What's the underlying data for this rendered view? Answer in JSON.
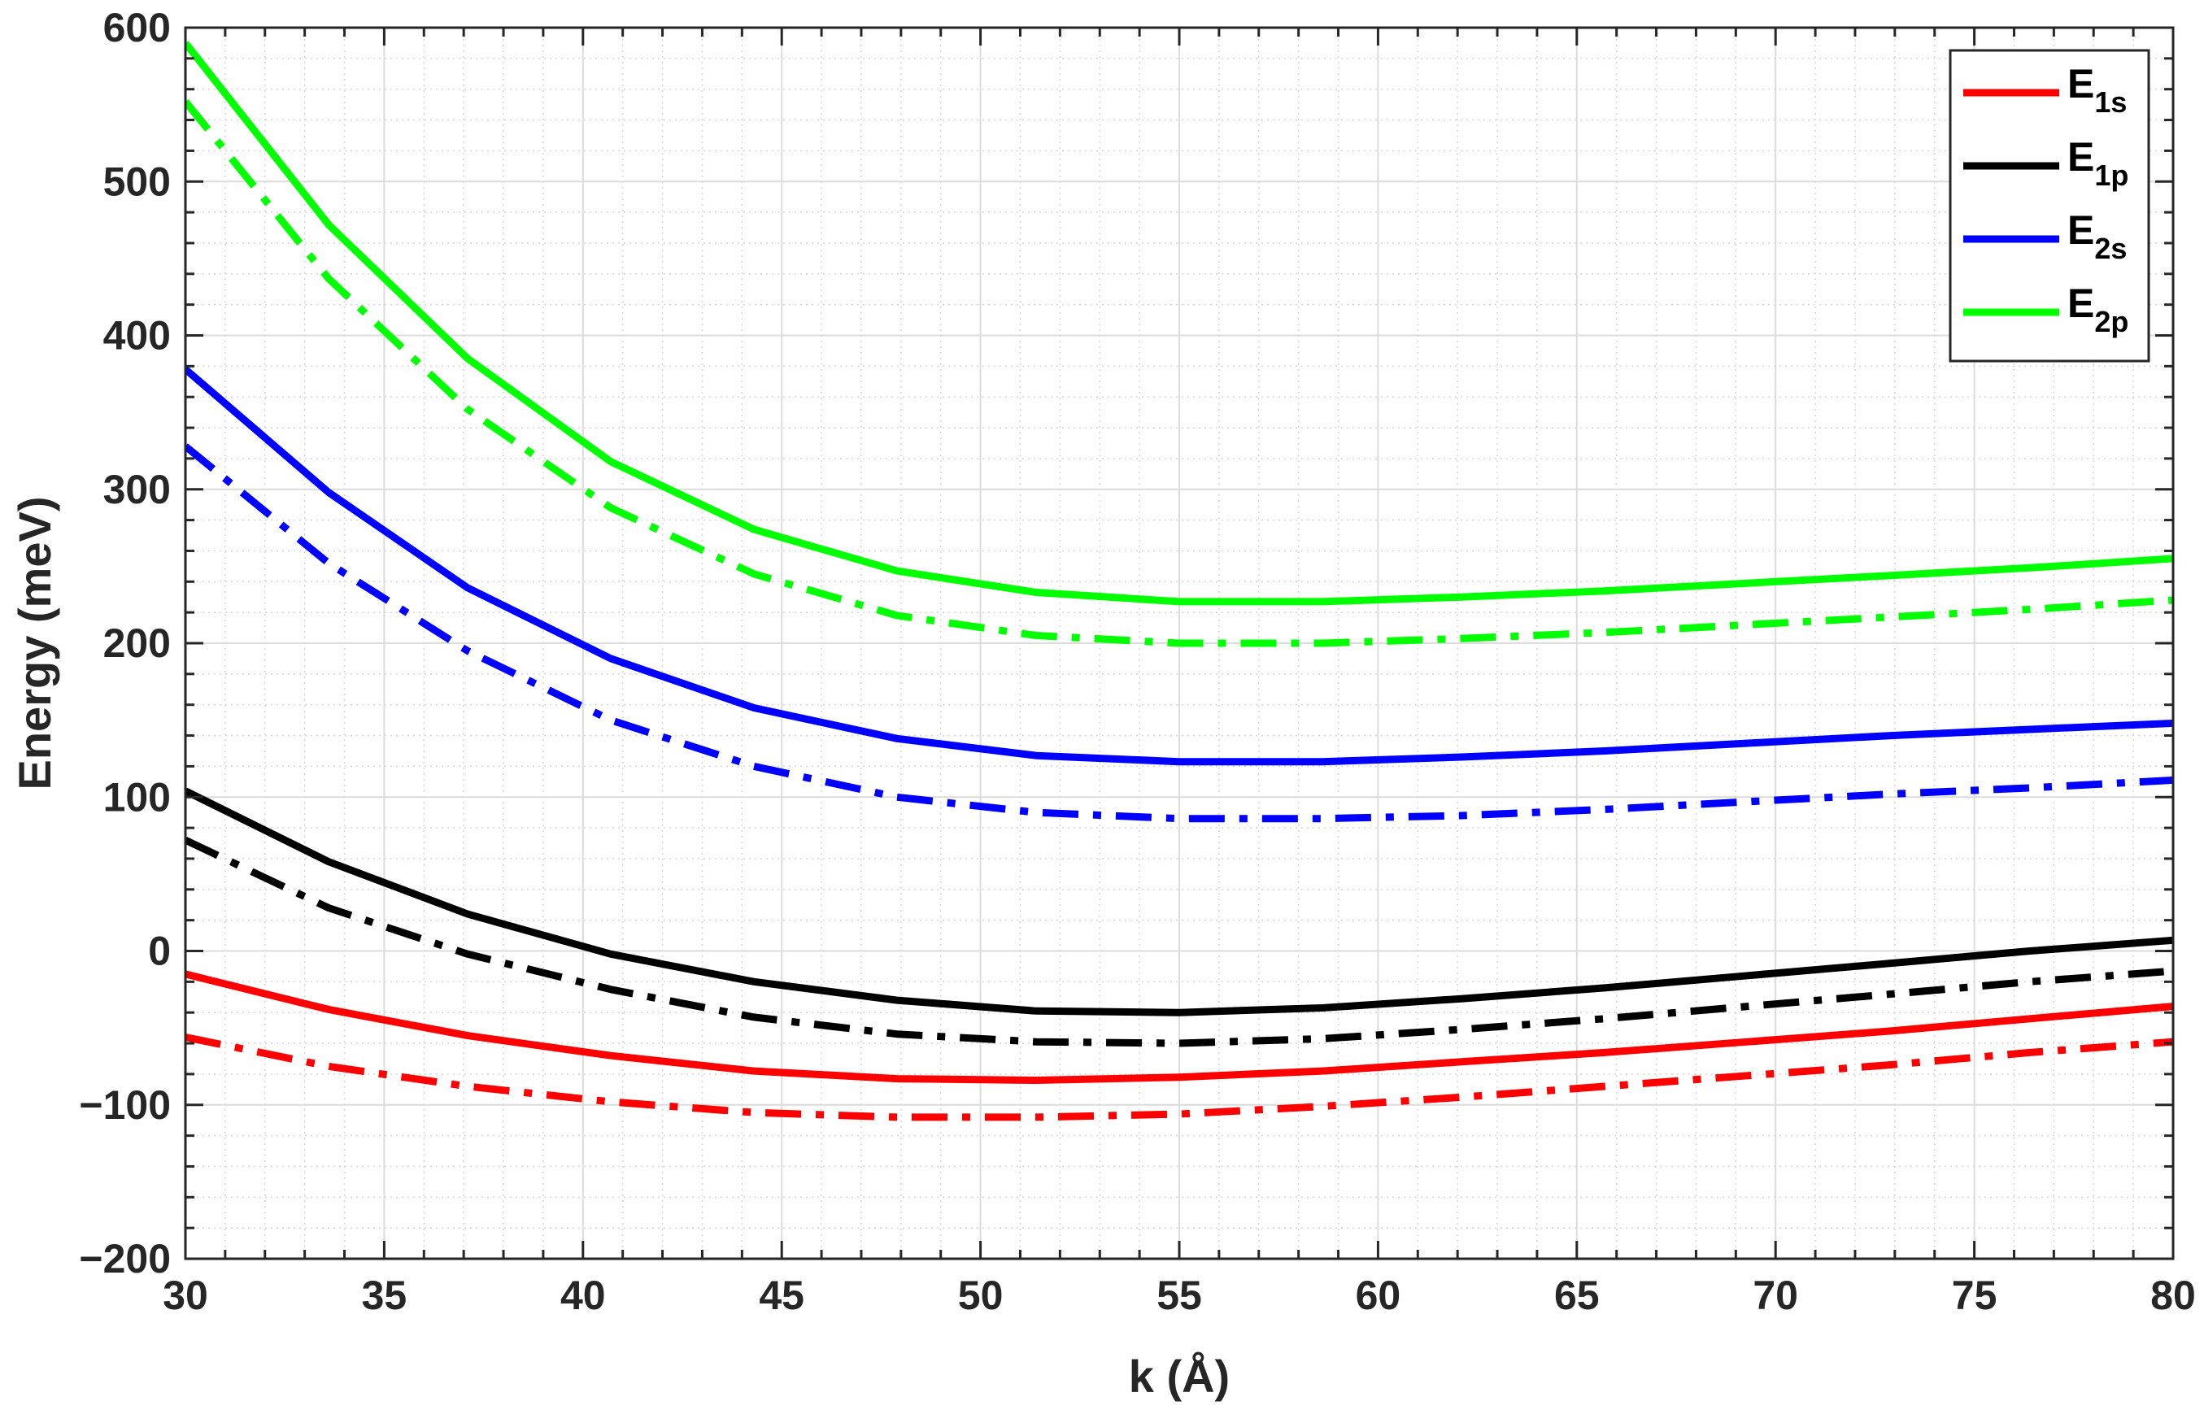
{
  "chart_data": {
    "type": "line",
    "title": "",
    "xlabel": "k (Å)",
    "ylabel": "Energy (meV)",
    "xlim": [
      30,
      80
    ],
    "ylim": [
      -200,
      600
    ],
    "xticks": [
      30,
      35,
      40,
      45,
      50,
      55,
      60,
      65,
      70,
      75,
      80
    ],
    "yticks": [
      -200,
      -100,
      0,
      100,
      200,
      300,
      400,
      500,
      600
    ],
    "xtick_labels": [
      "30",
      "35",
      "40",
      "45",
      "50",
      "55",
      "60",
      "65",
      "70",
      "75",
      "80"
    ],
    "ytick_labels": [
      "−200",
      "−100",
      "0",
      "100",
      "200",
      "300",
      "400",
      "500",
      "600"
    ],
    "grid": true,
    "minor_grid": true,
    "legend_position": "top-right",
    "x": [
      30,
      33.6,
      37.1,
      40.7,
      44.3,
      47.9,
      51.4,
      55,
      58.6,
      62.1,
      65.7,
      69.3,
      72.9,
      76.4,
      80
    ],
    "series": [
      {
        "name": "E",
        "subscript": "1s",
        "color": "#ff0000",
        "style": "solid",
        "values": [
          -15,
          -38,
          -55,
          -68,
          -78,
          -83,
          -84,
          -82,
          -78,
          -72,
          -66,
          -59,
          -52,
          -44,
          -36
        ],
        "legend": true
      },
      {
        "color": "#ff0000",
        "style": "dashdot",
        "values": [
          -56,
          -75,
          -88,
          -98,
          -105,
          -108,
          -108,
          -106,
          -101,
          -95,
          -88,
          -81,
          -74,
          -66,
          -59
        ],
        "legend": false
      },
      {
        "name": "E",
        "subscript": "1p",
        "color": "#000000",
        "style": "solid",
        "values": [
          104,
          58,
          24,
          -2,
          -20,
          -32,
          -39,
          -40,
          -37,
          -31,
          -24,
          -16,
          -8,
          0,
          7
        ],
        "legend": true
      },
      {
        "color": "#000000",
        "style": "dashdot",
        "values": [
          72,
          28,
          -2,
          -25,
          -43,
          -54,
          -59,
          -60,
          -57,
          -51,
          -44,
          -36,
          -28,
          -20,
          -13
        ],
        "legend": false
      },
      {
        "name": "E",
        "subscript": "2s",
        "color": "#0000ff",
        "style": "solid",
        "values": [
          378,
          298,
          236,
          190,
          158,
          138,
          127,
          123,
          123,
          126,
          130,
          135,
          140,
          144,
          148
        ],
        "legend": true
      },
      {
        "color": "#0000ff",
        "style": "dashdot",
        "values": [
          328,
          252,
          195,
          150,
          120,
          100,
          90,
          86,
          86,
          88,
          92,
          97,
          102,
          106,
          111
        ],
        "legend": false
      },
      {
        "name": "E",
        "subscript": "2p",
        "color": "#00ff00",
        "style": "solid",
        "values": [
          590,
          472,
          385,
          318,
          274,
          247,
          233,
          227,
          227,
          230,
          234,
          239,
          244,
          249,
          255
        ],
        "legend": true
      },
      {
        "color": "#00ff00",
        "style": "dashdot",
        "values": [
          552,
          437,
          352,
          288,
          245,
          218,
          205,
          200,
          200,
          203,
          207,
          212,
          217,
          222,
          228
        ],
        "legend": false
      }
    ]
  }
}
